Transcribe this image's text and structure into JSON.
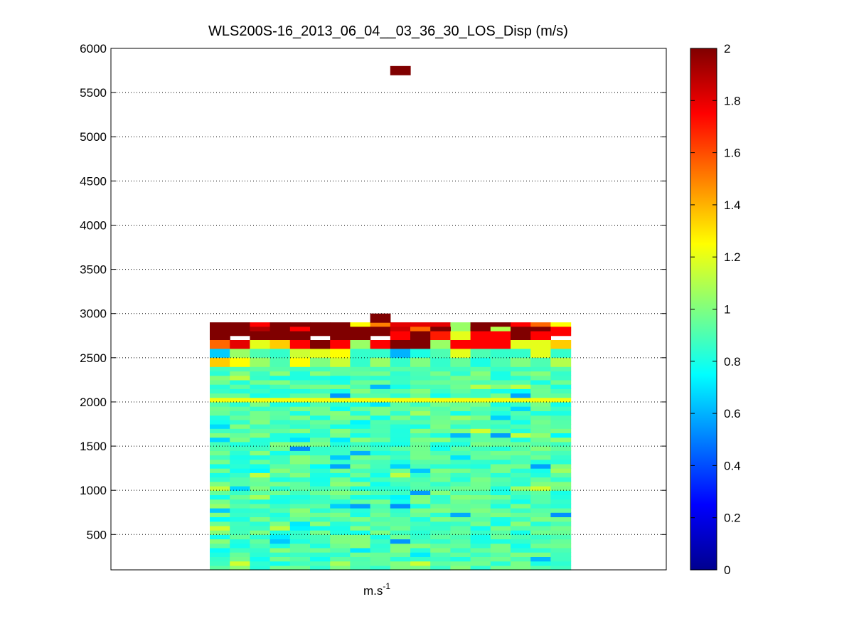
{
  "chart_data": {
    "type": "heatmap",
    "title": "WLS200S-16_2013_06_04__03_36_30_LOS_Disp (m/s)",
    "xlabel_base": "m.s",
    "xlabel_exp": "-1",
    "ylabel": "",
    "ylim": [
      100,
      6000
    ],
    "y_ticks": [
      500,
      1000,
      1500,
      2000,
      2500,
      3000,
      3500,
      4000,
      4500,
      5000,
      5500,
      6000
    ],
    "grid": "y-dotted",
    "colormap": "jet",
    "clim": [
      0,
      2
    ],
    "colorbar_ticks": [
      0,
      0.2,
      0.4,
      0.6,
      0.8,
      1,
      1.2,
      1.4,
      1.6,
      1.8,
      2
    ],
    "columns": 18,
    "gate_height": 50,
    "gate_range": [
      100,
      2900
    ],
    "outlier": {
      "column": 9,
      "y_bottom": 5700,
      "y_top": 5800,
      "value": 2.0
    },
    "top_cell": {
      "column": 8,
      "y_bottom": 2900,
      "y_top": 3000,
      "value": 2.0
    },
    "upper_rows": [
      {
        "y": 2850,
        "values": [
          2,
          2,
          1.75,
          2,
          2,
          2,
          2,
          1.25,
          1.5,
          1.8,
          1.8,
          1.8,
          1.05,
          2,
          2,
          1.75,
          1.55,
          1.25
        ]
      },
      {
        "y": 2800,
        "values": [
          2,
          2,
          1.9,
          2,
          1.75,
          2,
          2,
          2,
          2,
          1.85,
          1.55,
          2,
          null,
          2,
          1.1,
          2,
          2,
          1.75
        ]
      },
      {
        "y": 2750,
        "values": [
          2,
          null,
          2,
          2,
          2,
          null,
          2,
          2,
          null,
          1.75,
          2,
          1.7,
          1.2,
          1.75,
          1.75,
          2,
          1.75,
          null
        ]
      },
      {
        "y": 2650,
        "values": [
          1.55,
          1.8,
          1.2,
          1.35,
          1.75,
          2,
          1.75,
          1.05,
          1.75,
          2,
          2,
          1.05,
          1.75,
          1.75,
          1.75,
          1.2,
          1.2,
          1.35
        ]
      },
      {
        "y": 2550,
        "values": [
          0.65,
          1.05,
          0.9,
          0.85,
          1.15,
          1.2,
          1.25,
          0.85,
          0.85,
          0.6,
          0.8,
          0.9,
          1.2,
          0.9,
          0.85,
          0.85,
          1.2,
          0.85
        ]
      },
      {
        "y": 2450,
        "values": [
          1.35,
          1.25,
          1.05,
          0.9,
          1.25,
          1.0,
          1.15,
          0.85,
          1.05,
          0.85,
          1.0,
          0.85,
          0.95,
          0.8,
          0.9,
          1.0,
          0.9,
          1.1
        ]
      }
    ],
    "bright_band": {
      "y": 2000,
      "value": 1.22
    },
    "lower_profile": {
      "y_min": 100,
      "y_max": 2400,
      "mean": 0.9,
      "spread": 0.12
    }
  }
}
